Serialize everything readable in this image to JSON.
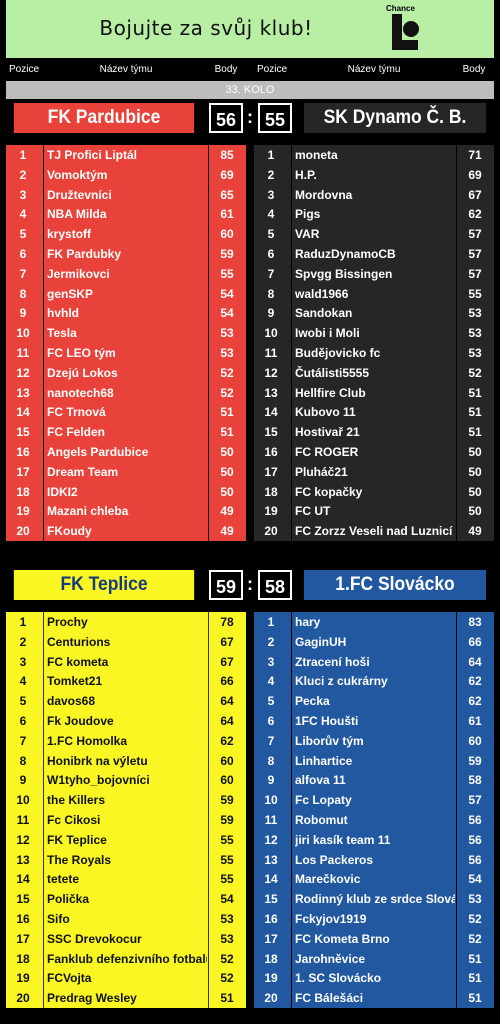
{
  "banner": {
    "text": "Bojujte za svůj klub!",
    "logo_text": "Chance"
  },
  "header": {
    "pos": "Pozice",
    "name": "Název týmu",
    "pts": "Body"
  },
  "round": "33. KOLO",
  "matches": [
    {
      "home": {
        "name": "FK Pardubice",
        "score": "56",
        "color": "#e8423a",
        "rows": [
          [
            "1",
            "TJ Profici Liptál",
            "85"
          ],
          [
            "2",
            "Vomoktým",
            "69"
          ],
          [
            "3",
            "Družtevníci",
            "65"
          ],
          [
            "4",
            "NBA Milda",
            "61"
          ],
          [
            "5",
            "krystoff",
            "60"
          ],
          [
            "6",
            "FK Pardubky",
            "59"
          ],
          [
            "7",
            "Jermikovci",
            "55"
          ],
          [
            "8",
            "genSKP",
            "54"
          ],
          [
            "9",
            "hvhld",
            "54"
          ],
          [
            "10",
            "Tesla",
            "53"
          ],
          [
            "11",
            "FC LEO tým",
            "53"
          ],
          [
            "12",
            "Dzejú Lokos",
            "52"
          ],
          [
            "13",
            "nanotech68",
            "52"
          ],
          [
            "14",
            "FC Trnová",
            "51"
          ],
          [
            "15",
            "FC Felden",
            "51"
          ],
          [
            "16",
            "Angels Pardubice",
            "50"
          ],
          [
            "17",
            "Dream Team",
            "50"
          ],
          [
            "18",
            "IDKI2",
            "50"
          ],
          [
            "19",
            "Mazani chleba",
            "49"
          ],
          [
            "20",
            "FKoudy",
            "49"
          ]
        ]
      },
      "away": {
        "name": "SK Dynamo Č. B.",
        "score": "55",
        "color": "#262626",
        "rows": [
          [
            "1",
            "moneta",
            "71"
          ],
          [
            "2",
            "H.P.",
            "69"
          ],
          [
            "3",
            "Mordovna",
            "67"
          ],
          [
            "4",
            "Pigs",
            "62"
          ],
          [
            "5",
            "VAR",
            "57"
          ],
          [
            "6",
            "RaduzDynamoCB",
            "57"
          ],
          [
            "7",
            "Spvgg Bissingen",
            "57"
          ],
          [
            "8",
            "wald1966",
            "55"
          ],
          [
            "9",
            "Sandokan",
            "53"
          ],
          [
            "10",
            "Iwobi i Moli",
            "53"
          ],
          [
            "11",
            "Budějovicko fc",
            "53"
          ],
          [
            "12",
            "Čutálisti5555",
            "52"
          ],
          [
            "13",
            "Hellfire Club",
            "51"
          ],
          [
            "14",
            "Kubovo 11",
            "51"
          ],
          [
            "15",
            "Hostivař 21",
            "51"
          ],
          [
            "16",
            "FC ROGER",
            "50"
          ],
          [
            "17",
            "Pluháč21",
            "50"
          ],
          [
            "18",
            "FC kopačky",
            "50"
          ],
          [
            "19",
            "FC UT",
            "50"
          ],
          [
            "20",
            "FC Zorzz Veseli nad Luznicí",
            "49"
          ]
        ]
      }
    },
    {
      "home": {
        "name": "FK Teplice",
        "score": "59",
        "color": "#f9f624",
        "rows": [
          [
            "1",
            "Prochy",
            "78"
          ],
          [
            "2",
            "Centurions",
            "67"
          ],
          [
            "3",
            "FC kometa",
            "67"
          ],
          [
            "4",
            "Tomket21",
            "66"
          ],
          [
            "5",
            "davos68",
            "64"
          ],
          [
            "6",
            "Fk Joudove",
            "64"
          ],
          [
            "7",
            "1.FC Homolka",
            "62"
          ],
          [
            "8",
            "Honibrk na výletu",
            "60"
          ],
          [
            "9",
            "W1tyho_bojovníci",
            "60"
          ],
          [
            "10",
            "the Killers",
            "59"
          ],
          [
            "11",
            "Fc Cikosi",
            "59"
          ],
          [
            "12",
            "FK Teplice",
            "55"
          ],
          [
            "13",
            "The Royals",
            "55"
          ],
          [
            "14",
            "tetete",
            "55"
          ],
          [
            "15",
            "Polička",
            "54"
          ],
          [
            "16",
            "Sifo",
            "53"
          ],
          [
            "17",
            "SSC Drevokocur",
            "53"
          ],
          [
            "18",
            "Fanklub defenzivního fotbalu",
            "52"
          ],
          [
            "19",
            "FCVojta",
            "52"
          ],
          [
            "20",
            "Predrag Wesley",
            "51"
          ]
        ]
      },
      "away": {
        "name": "1.FC Slovácko",
        "score": "58",
        "color": "#2158a0",
        "rows": [
          [
            "1",
            "hary",
            "83"
          ],
          [
            "2",
            "GaginUH",
            "66"
          ],
          [
            "3",
            "Ztracení hoši",
            "64"
          ],
          [
            "4",
            "Kluci z cukrárny",
            "62"
          ],
          [
            "5",
            "Pecka",
            "62"
          ],
          [
            "6",
            "1FC Houšti",
            "61"
          ],
          [
            "7",
            "Liborův tým",
            "60"
          ],
          [
            "8",
            "Linhartice",
            "59"
          ],
          [
            "9",
            "alfova 11",
            "58"
          ],
          [
            "10",
            "Fc Lopaty",
            "57"
          ],
          [
            "11",
            "Robomut",
            "56"
          ],
          [
            "12",
            "jiri kasík team 11",
            "56"
          ],
          [
            "13",
            "Los Packeros",
            "56"
          ],
          [
            "14",
            "Marečkovic",
            "54"
          ],
          [
            "15",
            "Rodinný klub ze srdce Slovácka",
            "53"
          ],
          [
            "16",
            "Fckyjov1919",
            "52"
          ],
          [
            "17",
            "FC Kometa Brno",
            "52"
          ],
          [
            "18",
            "Jarohněvice",
            "51"
          ],
          [
            "19",
            "1. SC Slovácko",
            "51"
          ],
          [
            "20",
            "FC Bálešáci",
            "51"
          ]
        ]
      }
    }
  ]
}
